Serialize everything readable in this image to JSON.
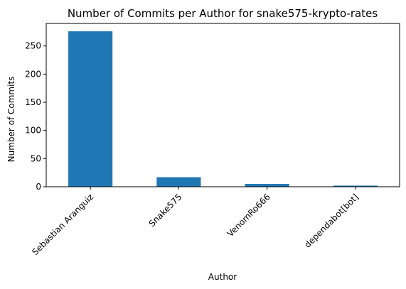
{
  "chart_data": {
    "type": "bar",
    "title": "Number of Commits per Author for snake575-krypto-rates",
    "xlabel": "Author",
    "ylabel": "Number of Commits",
    "categories": [
      "Sebastian Aranguiz",
      "Snake575",
      "VenomRo666",
      "dependabot[bot]"
    ],
    "values": [
      276,
      17,
      5,
      2
    ],
    "ylim": [
      0,
      290
    ],
    "yticks": [
      0,
      50,
      100,
      150,
      200,
      250
    ],
    "grid": false,
    "bar_color": "#1f77b4"
  }
}
